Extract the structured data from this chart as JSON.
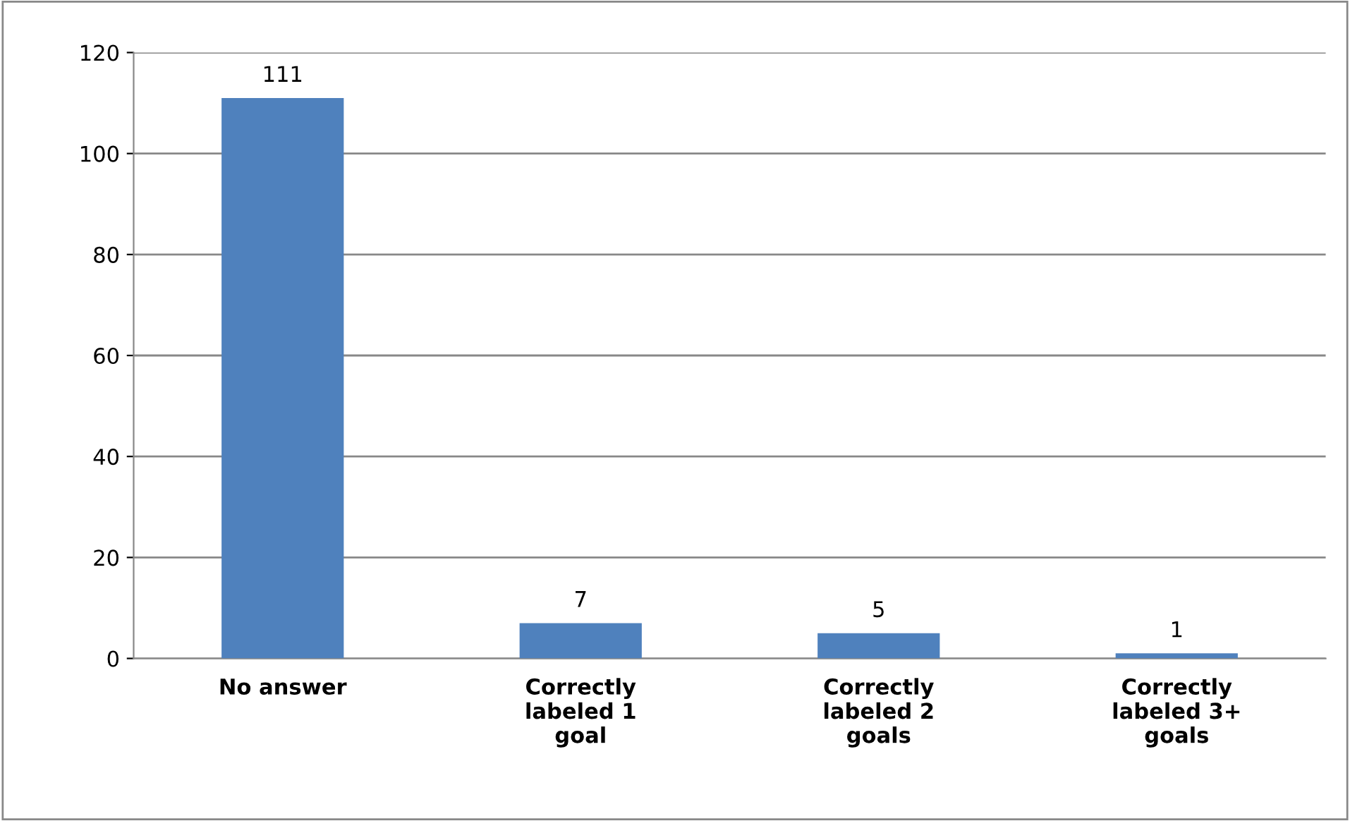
{
  "chart_data": {
    "type": "bar",
    "categories": [
      "No answer",
      "Correctly\nlabeled 1\ngoal",
      "Correctly\nlabeled 2\ngoals",
      "Correctly\nlabeled 3+\ngoals"
    ],
    "values": [
      111,
      7,
      5,
      1
    ],
    "color": "#4f81bd",
    "ylim": [
      0,
      120
    ],
    "yticks": [
      0,
      20,
      40,
      60,
      80,
      100,
      120
    ],
    "grid": "y",
    "data_labels": true
  }
}
